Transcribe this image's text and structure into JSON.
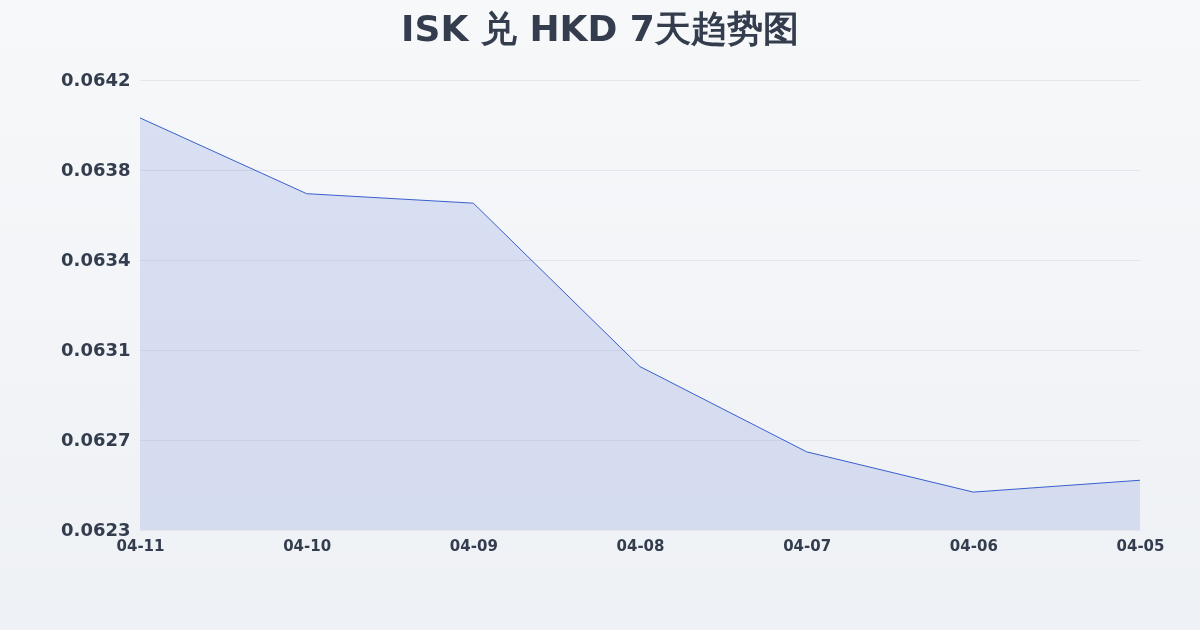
{
  "chart_data": {
    "type": "area",
    "title": "ISK 兑 HKD 7天趋势图",
    "categories": [
      "04-11",
      "04-10",
      "04-09",
      "04-08",
      "04-07",
      "04-06",
      "04-05"
    ],
    "series": [
      {
        "color": "#3a5fcd",
        "values": [
          0.06404,
          0.06372,
          0.06368,
          0.06299,
          0.06263,
          0.06246,
          0.06251
        ]
      }
    ],
    "ylim": [
      0.0623,
      0.0642
    ],
    "yticks": [
      0.0623,
      {
        "value": 0.06268,
        "label": "0.0627"
      },
      {
        "value": 0.06306,
        "label": "0.0631"
      },
      {
        "value": 0.06344,
        "label": "0.0634"
      },
      {
        "value": 0.06382,
        "label": "0.0638"
      },
      0.0642
    ],
    "grid": "y"
  }
}
